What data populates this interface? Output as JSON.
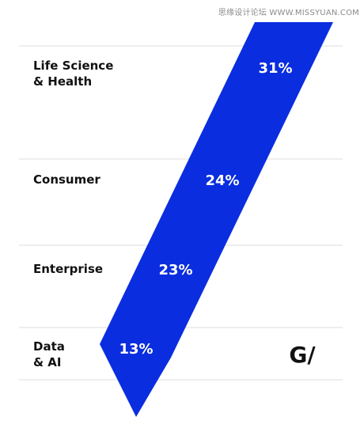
{
  "watermark": "思缘设计论坛 WWW.MISSYUAN.COM",
  "logo": "G/",
  "colors": {
    "band": "#0a2ddf",
    "text_on_band": "#ffffff",
    "rule": "#dcdcdc",
    "label": "#111111",
    "logo": "#111111"
  },
  "chart_data": {
    "type": "bar",
    "categories": [
      [
        "Life Science",
        "& Health"
      ],
      [
        "Consumer"
      ],
      [
        "Enterprise"
      ],
      [
        "Data",
        "& AI"
      ]
    ],
    "values": [
      31,
      24,
      23,
      13
    ],
    "value_labels": [
      "31%",
      "24%",
      "23%",
      "13%"
    ],
    "unit": "%",
    "grid": true,
    "legend": "none"
  }
}
